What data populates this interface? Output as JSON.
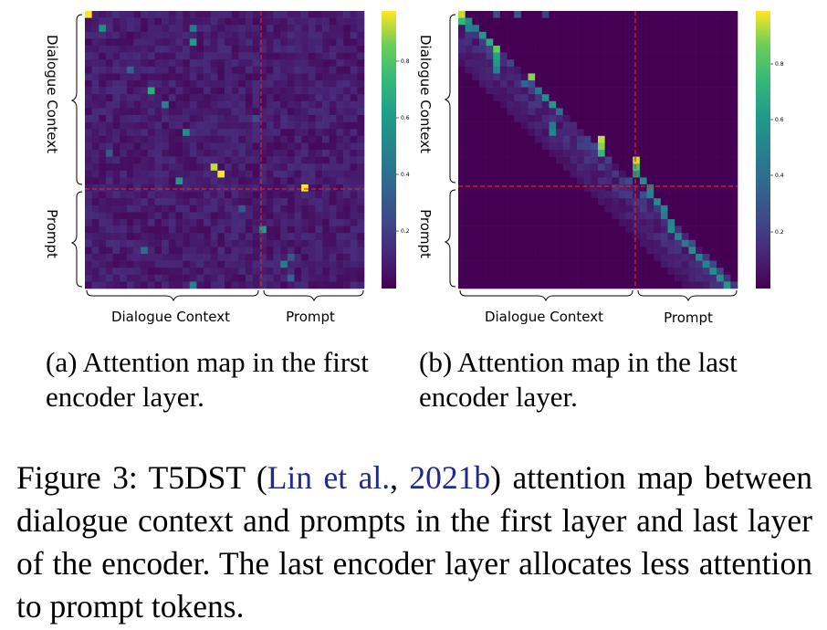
{
  "panels": [
    {
      "id": "a",
      "subcaption_line1": "(a) Attention map in the first",
      "subcaption_line2": "encoder layer.",
      "y_group_labels": [
        "Dialogue Context",
        "Prompt"
      ],
      "x_group_labels": [
        "Dialogue Context",
        "Prompt"
      ],
      "colorbar_ticks": [
        "0.8",
        "0.6",
        "0.4",
        "0.2"
      ]
    },
    {
      "id": "b",
      "subcaption_line1": "(b) Attention map in the last",
      "subcaption_line2": "encoder layer.",
      "y_group_labels": [
        "Dialogue Context",
        "Prompt"
      ],
      "x_group_labels": [
        "Dialogue Context",
        "Prompt"
      ],
      "colorbar_ticks": [
        "0.8",
        "0.6",
        "0.4",
        "0.2"
      ]
    }
  ],
  "caption": {
    "prefix": "Figure 3: T5DST (",
    "cite_authors": "Lin et al.",
    "cite_sep": ", ",
    "cite_year": "2021b",
    "rest": ") attention map between dialogue context and prompts in the first layer and last layer of the encoder. The last encoder layer allocates less attention to prompt tokens."
  },
  "colors": {
    "divider": "#d62728",
    "viridis_low": "#440154",
    "viridis_high": "#fde725"
  }
}
